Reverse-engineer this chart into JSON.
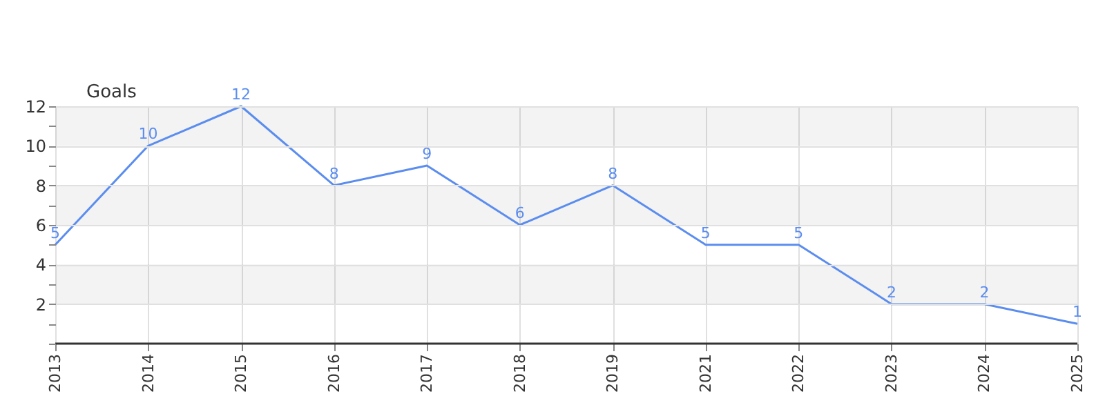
{
  "chart_data": {
    "type": "line",
    "ylabel": "Goals",
    "categories": [
      "2013",
      "2014",
      "2015",
      "2016",
      "2017",
      "2018",
      "2019",
      "2021",
      "2022",
      "2023",
      "2024",
      "2025"
    ],
    "values": [
      5,
      10,
      12,
      8,
      9,
      6,
      8,
      5,
      5,
      2,
      2,
      1
    ],
    "color": "#5b8def",
    "ylim": [
      0,
      12
    ],
    "yticks": [
      {
        "value": 0,
        "label": null
      },
      {
        "value": 1,
        "label": null
      },
      2,
      {
        "value": 3,
        "label": null
      },
      4,
      {
        "value": 5,
        "label": null
      },
      6,
      {
        "value": 7,
        "label": null
      },
      8,
      {
        "value": 9,
        "label": null
      },
      10,
      {
        "value": 11,
        "label": null
      },
      12
    ],
    "bands": [
      {
        "axis": "y",
        "from": 2,
        "to": 4,
        "color": "#f3f3f3"
      },
      {
        "axis": "y",
        "from": 6,
        "to": 8,
        "color": "#f3f3f3"
      },
      {
        "axis": "y",
        "from": 10,
        "to": 12,
        "color": "#f3f3f3"
      }
    ],
    "grid": true,
    "data_labels": true,
    "marker": "none",
    "line_style": "solid"
  }
}
